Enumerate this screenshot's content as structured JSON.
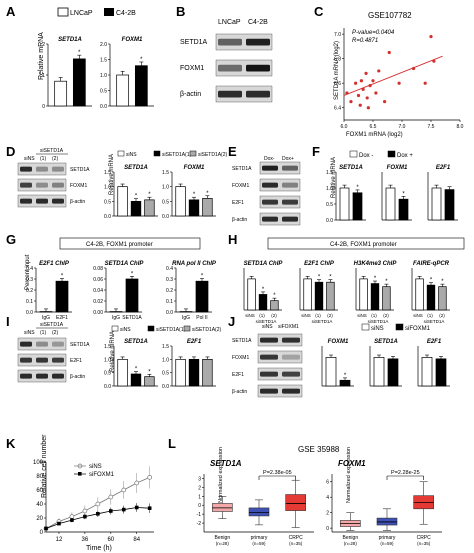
{
  "panel_letters": [
    "A",
    "B",
    "C",
    "D",
    "E",
    "F",
    "G",
    "H",
    "I",
    "J",
    "K",
    "L"
  ],
  "colors": {
    "black": "#000000",
    "gray": "#999999",
    "white": "#ffffff",
    "red": "#e53935",
    "pink": "#f4a9a8",
    "blue": "#3f51b5",
    "scatter": "#d32f2f"
  },
  "A": {
    "legend": [
      "LNCaP",
      "C4-2B"
    ],
    "ylabel": "Relative mRNA",
    "charts": [
      {
        "title": "SETD1A",
        "categories": [
          "LNCaP",
          "C4-2B"
        ],
        "values": [
          1.0,
          1.9
        ],
        "ylim": [
          0,
          2.5
        ],
        "ticks": [
          "0",
          "1",
          "2"
        ],
        "sig": "*"
      },
      {
        "title": "FOXM1",
        "categories": [
          "LNCaP",
          "C4-2B"
        ],
        "values": [
          1.0,
          1.3
        ],
        "ylim": [
          0,
          2.0
        ],
        "ticks": [
          "0.0",
          "0.5",
          "1.0",
          "1.5",
          "2.0"
        ],
        "sig": "*"
      }
    ]
  },
  "B": {
    "columns": [
      "LNCaP",
      "C4-2B"
    ],
    "rows": [
      "SETD1A",
      "FOXM1",
      "β-actin"
    ]
  },
  "C": {
    "title": "GSE107782",
    "pvalue": "P-value=0.0404",
    "r": "R=0.4871",
    "xlabel": "FOXM1 mRNA (log2)",
    "ylabel": "SETD1A mRNA (log2)",
    "xticks": [
      "6.0",
      "6.5",
      "7.0",
      "7.5",
      "8.0"
    ],
    "yticks": [
      "6.4",
      "6.6",
      "6.8",
      "7.0"
    ],
    "chart_data": {
      "type": "scatter",
      "xlim": [
        6.0,
        8.0
      ],
      "ylim": [
        6.3,
        7.05
      ],
      "points": [
        [
          6.05,
          6.52
        ],
        [
          6.12,
          6.45
        ],
        [
          6.2,
          6.6
        ],
        [
          6.25,
          6.5
        ],
        [
          6.28,
          6.42
        ],
        [
          6.3,
          6.62
        ],
        [
          6.33,
          6.55
        ],
        [
          6.38,
          6.68
        ],
        [
          6.4,
          6.48
        ],
        [
          6.42,
          6.4
        ],
        [
          6.45,
          6.58
        ],
        [
          6.5,
          6.62
        ],
        [
          6.55,
          6.52
        ],
        [
          6.6,
          6.7
        ],
        [
          6.7,
          6.45
        ],
        [
          6.78,
          6.85
        ],
        [
          6.95,
          6.6
        ],
        [
          7.2,
          6.72
        ],
        [
          7.4,
          6.6
        ],
        [
          7.5,
          6.98
        ],
        [
          7.55,
          6.78
        ]
      ],
      "fit": [
        [
          6.0,
          6.5
        ],
        [
          7.7,
          6.82
        ]
      ]
    }
  },
  "D": {
    "blot_header": "siSETD1A",
    "lanes": [
      "siNS",
      "(1)",
      "(2)"
    ],
    "rows": [
      "SETD1A",
      "FOXM1",
      "β-actin"
    ],
    "legend": [
      "siNS",
      "siSETD1A(1)",
      "siSETD1A(2)"
    ],
    "ylabel": "Relative mRNA",
    "charts": [
      {
        "title": "SETD1A",
        "values": [
          1.0,
          0.5,
          0.55
        ],
        "ylim": [
          0,
          1.5
        ],
        "ticks": [
          "0.0",
          "0.5",
          "1.0",
          "1.5"
        ]
      },
      {
        "title": "FOXM1",
        "values": [
          1.0,
          0.55,
          0.6
        ],
        "ylim": [
          0,
          1.5
        ],
        "ticks": [
          "0.0",
          "0.5",
          "1.0",
          "1.5"
        ]
      }
    ]
  },
  "E": {
    "columns": [
      "Dox-",
      "Dox+"
    ],
    "rows": [
      "SETD1A",
      "FOXM1",
      "E2F1",
      "β-actin"
    ]
  },
  "F": {
    "legend": [
      "Dox -",
      "Dox +"
    ],
    "ylabel": "Relative mRNA",
    "charts": [
      {
        "title": "SETD1A",
        "values": [
          1.0,
          0.85
        ],
        "ylim": [
          0,
          1.5
        ]
      },
      {
        "title": "FOXM1",
        "values": [
          1.0,
          0.65
        ],
        "ylim": [
          0,
          1.5
        ]
      },
      {
        "title": "E2F1",
        "values": [
          1.0,
          0.95
        ],
        "ylim": [
          0,
          1.5
        ]
      }
    ],
    "ticks": [
      "0.0",
      "0.5",
      "1.0",
      "1.5"
    ]
  },
  "G": {
    "header": "C4-2B, FOXM1 promoter",
    "ylabel": "Percent input",
    "charts": [
      {
        "title": "E2F1 ChIP",
        "categories": [
          "IgG",
          "E2F1"
        ],
        "values": [
          0.0,
          0.28
        ],
        "ylim": [
          0,
          0.4
        ],
        "ticks": [
          "0.0",
          "0.1",
          "0.2",
          "0.3",
          "0.4"
        ]
      },
      {
        "title": "SETD1A ChIP",
        "categories": [
          "IgG",
          "SETD1A"
        ],
        "values": [
          0.0,
          0.06
        ],
        "ylim": [
          0,
          0.08
        ],
        "ticks": [
          "0.00",
          "0.02",
          "0.04",
          "0.06",
          "0.08"
        ]
      },
      {
        "title": "RNA pol II ChIP",
        "categories": [
          "IgG",
          "Pol II"
        ],
        "values": [
          0.0,
          0.28
        ],
        "ylim": [
          0,
          0.4
        ],
        "ticks": [
          "0.0",
          "0.1",
          "0.2",
          "0.3",
          "0.4"
        ]
      }
    ]
  },
  "H": {
    "header": "C4-2B, FOXM1 promoter",
    "charts": [
      {
        "title": "SETD1A ChIP",
        "values": [
          0.1,
          0.05,
          0.03
        ]
      },
      {
        "title": "E2F1 ChIP",
        "values": [
          0.28,
          0.25,
          0.25
        ]
      },
      {
        "title": "H3K4me3 ChIP",
        "values": [
          1.0,
          0.85,
          0.75
        ]
      },
      {
        "title": "FAIRE-qPCR",
        "values": [
          1.0,
          0.8,
          0.75
        ]
      }
    ],
    "lanes": [
      "siNS",
      "(1)",
      "(2)"
    ],
    "group": "siSETD1A"
  },
  "I": {
    "blot_header": "siSETD1A",
    "lanes": [
      "siNS",
      "(1)",
      "(2)"
    ],
    "rows": [
      "SETD1A",
      "E2F1",
      "β-actin"
    ],
    "legend": [
      "siNS",
      "siSETD1A(1)",
      "siSETD1A(2)"
    ],
    "ylabel": "Relative mRNA",
    "charts": [
      {
        "title": "SETD1A",
        "values": [
          1.0,
          0.45,
          0.35
        ],
        "ylim": [
          0,
          1.5
        ],
        "ticks": [
          "0.0",
          "0.5",
          "1.0",
          "1.5"
        ]
      },
      {
        "title": "E2F1",
        "values": [
          1.0,
          1.0,
          1.0
        ],
        "ylim": [
          0,
          1.5
        ],
        "ticks": [
          "0.0",
          "0.5",
          "1.0",
          "1.5"
        ]
      }
    ]
  },
  "J": {
    "lanes": [
      "siNS",
      "siFOXM1"
    ],
    "rows": [
      "SETD1A",
      "FOXM1",
      "E2F1",
      "β-actin"
    ],
    "legend": [
      "siNS",
      "siFOXM1"
    ],
    "charts": [
      {
        "title": "FOXM1",
        "values": [
          1.0,
          0.2
        ]
      },
      {
        "title": "SETD1A",
        "values": [
          1.0,
          0.95
        ]
      },
      {
        "title": "E2F1",
        "values": [
          1.0,
          0.95
        ]
      }
    ]
  },
  "K": {
    "legend": [
      "siNS",
      "siFOXM1"
    ],
    "ylabel": "Relative cell number",
    "xlabel": "Time (h)",
    "xticks": [
      "12",
      "36",
      "60",
      "84"
    ],
    "yticks": [
      "0",
      "20",
      "40",
      "60",
      "80",
      "100"
    ],
    "chart_data": {
      "type": "line",
      "x": [
        0,
        12,
        24,
        36,
        48,
        60,
        72,
        84,
        96
      ],
      "xlim": [
        0,
        100
      ],
      "ylim": [
        0,
        100
      ],
      "series": [
        {
          "name": "siNS",
          "values": [
            5,
            15,
            22,
            30,
            40,
            50,
            60,
            70,
            78
          ]
        },
        {
          "name": "siFOXM1",
          "values": [
            5,
            12,
            17,
            22,
            26,
            30,
            32,
            35,
            34
          ]
        }
      ]
    }
  },
  "L": {
    "title": "GSE 35988",
    "ylabel": "Normalized expression",
    "charts": [
      {
        "title": "SETD1A",
        "p": "P=2.38e-05",
        "groups": [
          "Benign\n(n=28)",
          "primary\n(n=59)",
          "CRPC\n(n=35)"
        ],
        "labels_top": [
          "Benign",
          "primary",
          "CRPC"
        ],
        "labels_n": [
          "(n=28)",
          "(n=59)",
          "(n=35)"
        ],
        "yticks": [
          "-2",
          "-1",
          "0",
          "1",
          "2",
          "3"
        ],
        "ylim": [
          -3,
          3.5
        ],
        "boxes": [
          [
            -1.5,
            -0.7,
            -0.3,
            0.2,
            1.0
          ],
          [
            -2.2,
            -1.2,
            -0.8,
            -0.3,
            0.6
          ],
          [
            -2.5,
            -0.6,
            0.2,
            1.2,
            2.8
          ]
        ]
      },
      {
        "title": "FOXM1",
        "p": "P=2.28e-25",
        "groups": [
          "Benign\n(n=28)",
          "primary\n(n=59)",
          "CRPC\n(n=35)"
        ],
        "labels_top": [
          "Benign",
          "primary",
          "CRPC"
        ],
        "labels_n": [
          "(n=28)",
          "(n=59)",
          "(n=35)"
        ],
        "yticks": [
          "0",
          "2",
          "4",
          "6"
        ],
        "ylim": [
          -0.5,
          7
        ],
        "boxes": [
          [
            -0.3,
            0.2,
            0.6,
            1.0,
            2.0
          ],
          [
            -0.3,
            0.4,
            0.8,
            1.3,
            2.5
          ],
          [
            0.5,
            2.5,
            3.3,
            4.2,
            6.0
          ]
        ]
      }
    ]
  }
}
